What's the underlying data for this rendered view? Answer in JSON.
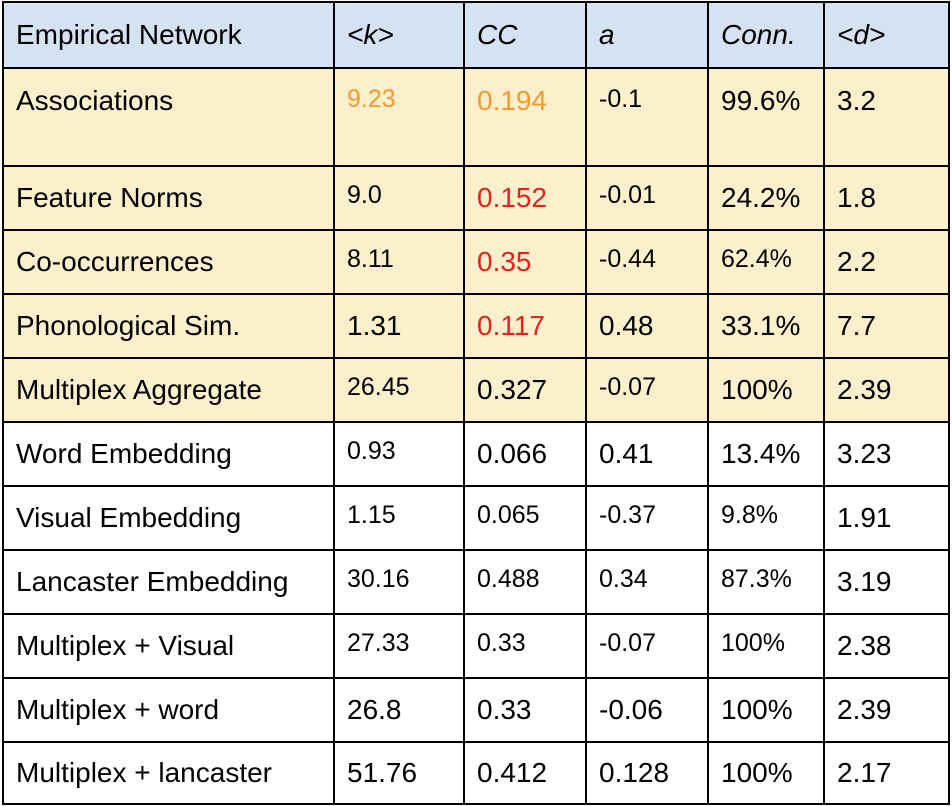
{
  "table": {
    "headers": [
      "Empirical Network",
      "<k>",
      "CC",
      "a",
      "Conn.",
      "<d>"
    ],
    "rows": [
      {
        "network": "Associations",
        "k": "9.23",
        "cc": "0.194",
        "a": "-0.1",
        "conn": "99.6%",
        "d": "3.2",
        "highlight": true,
        "k_color": "#f29a2e",
        "cc_color": "#f29a2e"
      },
      {
        "network": "Feature Norms",
        "k": "9.0",
        "cc": "0.152",
        "a": "-0.01",
        "conn": "24.2%",
        "d": "1.8",
        "highlight": true,
        "cc_color": "#e0231c"
      },
      {
        "network": "Co-occurrences",
        "k": "8.11",
        "cc": "0.35",
        "a": "-0.44",
        "conn": "62.4%",
        "d": "2.2",
        "highlight": true,
        "cc_color": "#e0231c"
      },
      {
        "network": "Phonological Sim.",
        "k": "1.31",
        "cc": "0.117",
        "a": "0.48",
        "conn": "33.1%",
        "d": "7.7",
        "highlight": true,
        "cc_color": "#e0231c"
      },
      {
        "network": "Multiplex Aggregate",
        "k": "26.45",
        "cc": "0.327",
        "a": "-0.07",
        "conn": "100%",
        "d": "2.39",
        "highlight": true
      },
      {
        "network": "Word Embedding",
        "k": "0.93",
        "cc": "0.066",
        "a": "0.41",
        "conn": "13.4%",
        "d": "3.23",
        "highlight": false
      },
      {
        "network": "Visual Embedding",
        "k": "1.15",
        "cc": "0.065",
        "a": "-0.37",
        "conn": "9.8%",
        "d": "1.91",
        "highlight": false
      },
      {
        "network": "Lancaster Embedding",
        "k": "30.16",
        "cc": "0.488",
        "a": "0.34",
        "conn": "87.3%",
        "d": "3.19",
        "highlight": false
      },
      {
        "network": "Multiplex + Visual",
        "k": "27.33",
        "cc": "0.33",
        "a": "-0.07",
        "conn": "100%",
        "d": "2.38",
        "highlight": false
      },
      {
        "network": "Multiplex + word",
        "k": "26.8",
        "cc": "0.33",
        "a": "-0.06",
        "conn": "100%",
        "d": "2.39",
        "highlight": false
      },
      {
        "network": "Multiplex + lancaster",
        "k": "51.76",
        "cc": "0.412",
        "a": "0.128",
        "conn": "100%",
        "d": "2.17",
        "highlight": false
      }
    ]
  },
  "colors": {
    "header_bg": "#d5e2f2",
    "highlight_bg": "#fcefcc",
    "orange": "#f29a2e",
    "red": "#e0231c"
  }
}
